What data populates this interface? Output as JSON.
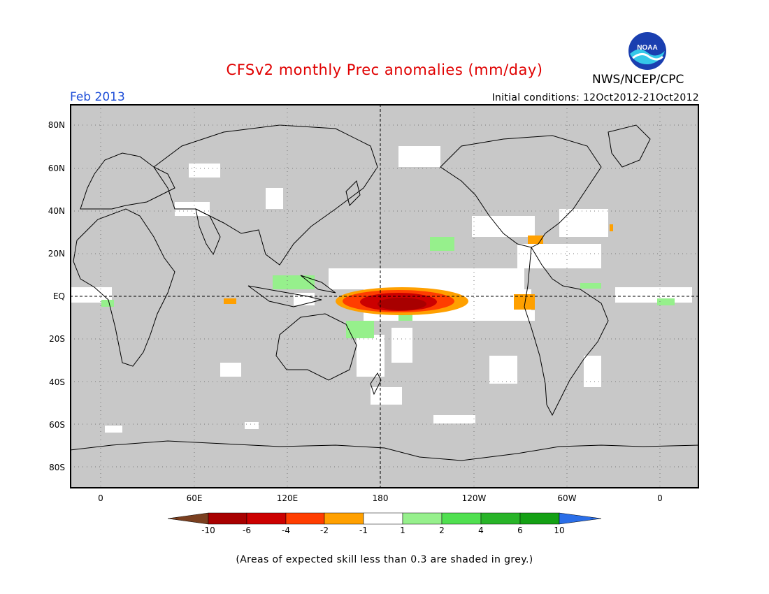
{
  "title": "CFSv2 monthly Prec anomalies (mm/day)",
  "brand": "NWS/NCEP/CPC",
  "logo_text": "NOAA",
  "valid_month": "Feb 2013",
  "initial_conditions": "Initial conditions: 12Oct2012-21Oct2012",
  "lat_labels": [
    "80N",
    "60N",
    "40N",
    "20N",
    "EQ",
    "20S",
    "40S",
    "60S",
    "80S"
  ],
  "lon_labels": [
    "0",
    "60E",
    "120E",
    "180",
    "120W",
    "60W",
    "0"
  ],
  "colorbar": {
    "labels": [
      "-10",
      "-6",
      "-4",
      "-2",
      "-1",
      "1",
      "2",
      "4",
      "6",
      "10"
    ],
    "colors": [
      "#7a3f1f",
      "#a80000",
      "#cc0000",
      "#ff3d00",
      "#ffa000",
      "#ffffff",
      "#96f08c",
      "#50e050",
      "#28b428",
      "#14a014",
      "#2a6ee8"
    ]
  },
  "colors": {
    "land_mask": "#c8c8c8",
    "frame": "#000000",
    "title": "#e00000",
    "month": "#1f4fd8"
  },
  "footnote": "(Areas of expected skill less than 0.3 are shaded in grey.)"
}
